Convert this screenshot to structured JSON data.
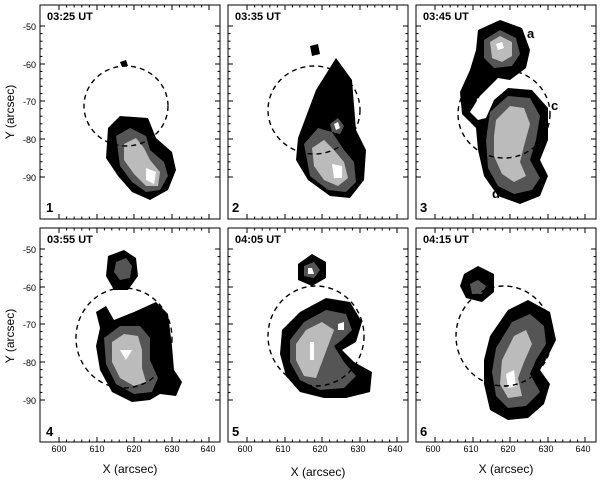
{
  "figure": {
    "xlabel": "X (arcsec)",
    "ylabel": "Y (arcsec)",
    "x_ticks": [
      "600",
      "610",
      "620",
      "630",
      "640"
    ],
    "y_ticks": [
      "-50",
      "-60",
      "-70",
      "-80",
      "-90"
    ],
    "panels": [
      {
        "number": "1",
        "time": "03:25 UT"
      },
      {
        "number": "2",
        "time": "03:35 UT"
      },
      {
        "number": "3",
        "time": "03:45 UT"
      },
      {
        "number": "4",
        "time": "03:55 UT"
      },
      {
        "number": "5",
        "time": "04:05 UT"
      },
      {
        "number": "6",
        "time": "04:15 UT"
      }
    ],
    "annotations": [
      "a",
      "b",
      "c",
      "d"
    ]
  }
}
